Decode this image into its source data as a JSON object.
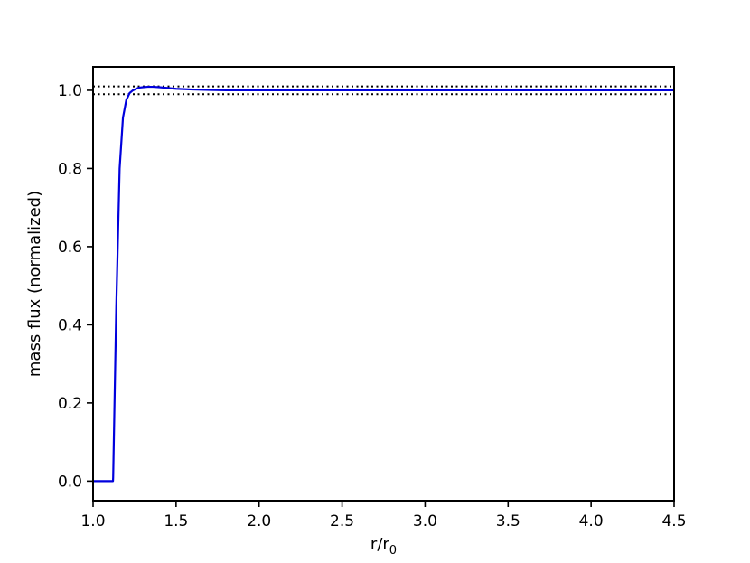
{
  "chart_data": {
    "type": "line",
    "title": "",
    "xlabel": "r/r",
    "xlabel_subscript": "0",
    "ylabel": "mass flux (normalized)",
    "xlim": [
      1.0,
      4.5
    ],
    "ylim": [
      -0.05,
      1.06
    ],
    "grid": false,
    "legend": "none",
    "xticks": [
      "1.0",
      "1.5",
      "2.0",
      "2.5",
      "3.0",
      "3.5",
      "4.0",
      "4.5"
    ],
    "yticks": [
      "0.0",
      "0.2",
      "0.4",
      "0.6",
      "0.8",
      "1.0"
    ],
    "series": [
      {
        "color": "#0000dd",
        "style": "solid",
        "x": [
          1.0,
          1.12,
          1.121,
          1.14,
          1.16,
          1.18,
          1.2,
          1.22,
          1.24,
          1.26,
          1.28,
          1.3,
          1.33,
          1.36,
          1.4,
          1.45,
          1.5,
          1.6,
          1.7,
          1.8,
          2.0,
          2.5,
          3.0,
          3.5,
          4.0,
          4.5
        ],
        "y": [
          0.0,
          0.0,
          0.01,
          0.45,
          0.8,
          0.93,
          0.975,
          0.993,
          1.0,
          1.004,
          1.007,
          1.008,
          1.009,
          1.009,
          1.008,
          1.006,
          1.004,
          1.002,
          1.001,
          1.0,
          1.0,
          1.0,
          1.0,
          1.0,
          1.0,
          1.0
        ]
      }
    ],
    "reference_lines": [
      {
        "y": 1.01,
        "color": "#000000",
        "style": "dotted"
      },
      {
        "y": 0.99,
        "color": "#000000",
        "style": "dotted"
      }
    ]
  }
}
